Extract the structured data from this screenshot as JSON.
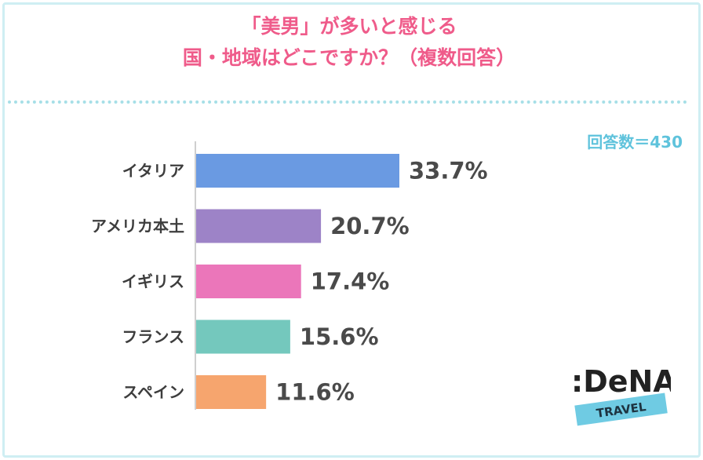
{
  "header": {
    "title_line1": "「美男」が多いと感じる",
    "title_line2": "国・地域はどこですか？（複数回答）"
  },
  "respondents": "回答数＝430",
  "logo": {
    "brand": ":DeNA",
    "sub": "TRAVEL"
  },
  "colors": {
    "title": "#ef5b8a",
    "count": "#5fc3dc",
    "border": "#cfeef3",
    "logo_band": "#6fcbe3"
  },
  "chart_data": {
    "type": "bar",
    "orientation": "horizontal",
    "categories": [
      "イタリア",
      "アメリカ本土",
      "イギリス",
      "フランス",
      "スペイン"
    ],
    "values": [
      33.7,
      20.7,
      17.4,
      15.6,
      11.6
    ],
    "value_labels": [
      "33.7%",
      "20.7%",
      "17.4%",
      "15.6%",
      "11.6%"
    ],
    "bar_colors": [
      "#6a9ae2",
      "#9d83c7",
      "#eb76ba",
      "#74c8bd",
      "#f6a56e"
    ],
    "unit": "%",
    "xlim": [
      0,
      40
    ],
    "grid": false
  }
}
